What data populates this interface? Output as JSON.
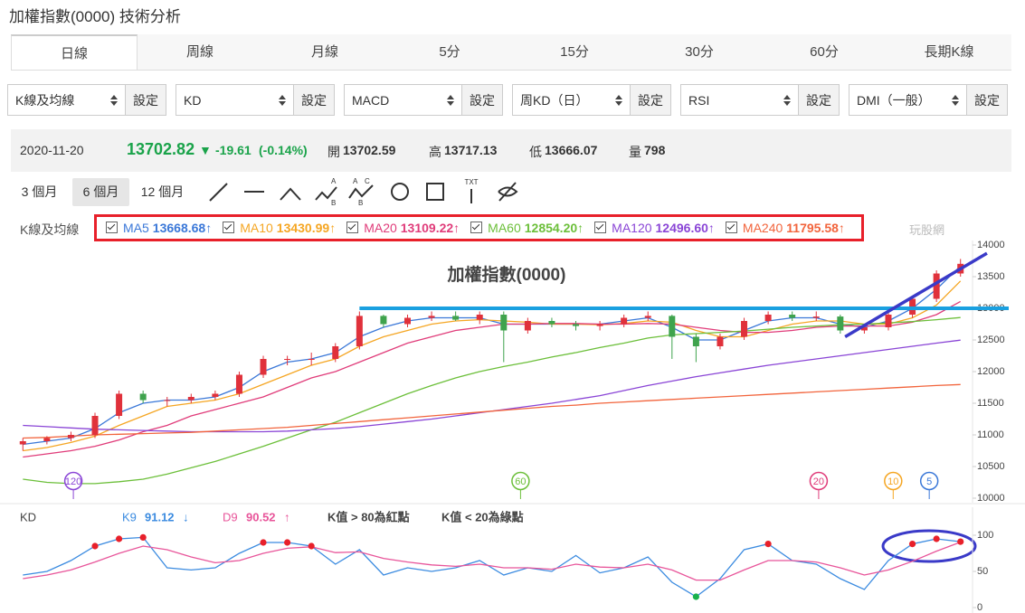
{
  "header": {
    "title": "加權指數(0000) 技術分析"
  },
  "tabs": {
    "items": [
      "日線",
      "周線",
      "月線",
      "5分",
      "15分",
      "30分",
      "60分",
      "長期K線"
    ],
    "active": 0
  },
  "selectors": {
    "items": [
      "K線及均線",
      "KD",
      "MACD",
      "周KD（日）",
      "RSI",
      "DMI（一般）"
    ],
    "button": "設定"
  },
  "quote": {
    "date": "2020-11-20",
    "close": 13702.82,
    "arrow": "▼",
    "change": -19.61,
    "change_pct": "(-0.14%)",
    "color": "#1aa34a",
    "open_label": "開",
    "open": 13702.59,
    "high_label": "高",
    "high": 13717.13,
    "low_label": "低",
    "low": 13666.07,
    "volume_label": "量",
    "volume": 798
  },
  "ranges": {
    "items": [
      "3 個月",
      "6 個月",
      "12 個月"
    ],
    "active": 1
  },
  "toolbar": {
    "icons": [
      {
        "letters": [
          "A",
          "B"
        ]
      },
      {
        "letters": [
          "A",
          "B",
          "C"
        ]
      },
      {
        "letters": [
          "TXT"
        ]
      }
    ]
  },
  "chart_data": {
    "type": "candlestick",
    "title": "加權指數(0000)",
    "panel_label": "K線及均線",
    "watermark": "玩股網",
    "up_color": "#e0313b",
    "down_color": "#3fa34d",
    "open": [
      10850,
      10900,
      10950,
      11000,
      11300,
      11650,
      11550,
      11550,
      11600,
      11650,
      11950,
      12200,
      12200,
      12200,
      12400,
      12880,
      12750,
      12850,
      12880,
      12820,
      12900,
      12650,
      12800,
      12750,
      12720,
      12750,
      12850,
      12880,
      12550,
      12400,
      12550,
      12800,
      12900,
      12850,
      12870,
      12650,
      12700,
      12900,
      13150,
      13550
    ],
    "high": [
      10950,
      10980,
      11050,
      11350,
      11700,
      11700,
      11600,
      11650,
      11700,
      12000,
      12250,
      12250,
      12300,
      12450,
      12950,
      12900,
      12900,
      12950,
      12950,
      12950,
      12950,
      12850,
      12850,
      12800,
      12800,
      12900,
      12950,
      12900,
      12600,
      12600,
      12850,
      12950,
      12950,
      12950,
      12900,
      12750,
      12950,
      13200,
      13600,
      13780
    ],
    "low": [
      10750,
      10850,
      10900,
      10950,
      11250,
      11500,
      11450,
      11500,
      11550,
      11600,
      11900,
      12100,
      12100,
      12150,
      12350,
      12700,
      12700,
      12800,
      12800,
      12750,
      12150,
      12600,
      12700,
      12650,
      12650,
      12700,
      12800,
      12200,
      12150,
      12350,
      12500,
      12750,
      12800,
      12800,
      12600,
      12600,
      12650,
      12850,
      13100,
      13500
    ],
    "close": [
      10900,
      10950,
      11000,
      11300,
      11650,
      11550,
      11550,
      11600,
      11650,
      11950,
      12200,
      12200,
      12200,
      12400,
      12880,
      12750,
      12850,
      12880,
      12820,
      12900,
      12650,
      12800,
      12750,
      12720,
      12750,
      12850,
      12880,
      12550,
      12400,
      12550,
      12800,
      12900,
      12850,
      12870,
      12650,
      12700,
      12900,
      13150,
      13550,
      13702.82
    ],
    "series": [
      {
        "name": "MA5",
        "trend": "↑",
        "color": "#3b78d8",
        "values": [
          10850,
          10900,
          10950,
          11100,
          11350,
          11500,
          11550,
          11550,
          11600,
          11750,
          12000,
          12150,
          12200,
          12300,
          12550,
          12700,
          12800,
          12850,
          12850,
          12850,
          12750,
          12750,
          12750,
          12750,
          12750,
          12800,
          12850,
          12700,
          12500,
          12500,
          12650,
          12800,
          12850,
          12850,
          12750,
          12700,
          12800,
          13000,
          13300,
          13668.68
        ]
      },
      {
        "name": "MA10",
        "trend": "↑",
        "color": "#f5a623",
        "values": [
          10750,
          10800,
          10880,
          10980,
          11150,
          11300,
          11450,
          11500,
          11550,
          11650,
          11800,
          11950,
          12100,
          12200,
          12400,
          12550,
          12650,
          12750,
          12800,
          12820,
          12800,
          12780,
          12750,
          12750,
          12740,
          12760,
          12800,
          12780,
          12650,
          12550,
          12550,
          12650,
          12750,
          12800,
          12800,
          12750,
          12750,
          12850,
          13050,
          13430.99
        ]
      },
      {
        "name": "MA20",
        "trend": "↑",
        "color": "#e03c7a",
        "values": [
          10650,
          10700,
          10750,
          10820,
          10920,
          11050,
          11150,
          11300,
          11400,
          11500,
          11600,
          11750,
          11900,
          12000,
          12150,
          12300,
          12450,
          12550,
          12650,
          12700,
          12750,
          12750,
          12760,
          12760,
          12750,
          12750,
          12760,
          12750,
          12700,
          12650,
          12620,
          12620,
          12650,
          12700,
          12720,
          12720,
          12720,
          12780,
          12900,
          13109.22
        ]
      },
      {
        "name": "MA60",
        "trend": "↑",
        "color": "#6cbf3a",
        "values": [
          10300,
          10250,
          10230,
          10230,
          10260,
          10300,
          10380,
          10480,
          10580,
          10700,
          10820,
          10950,
          11080,
          11200,
          11350,
          11500,
          11650,
          11780,
          11900,
          12000,
          12080,
          12150,
          12230,
          12300,
          12380,
          12450,
          12530,
          12580,
          12600,
          12620,
          12640,
          12670,
          12700,
          12720,
          12740,
          12750,
          12770,
          12790,
          12820,
          12854.2
        ],
        "value_labels": [
          null,
          null,
          null,
          null,
          null,
          null,
          null,
          null,
          null,
          null,
          null,
          null,
          null,
          null,
          null,
          null,
          null,
          null,
          null,
          null,
          null,
          null,
          null,
          null,
          null,
          null,
          null,
          null,
          null,
          null,
          null,
          null,
          null,
          null,
          null,
          null,
          null,
          null,
          null,
          "12854.20"
        ]
      },
      {
        "name": "MA120",
        "trend": "↑",
        "color": "#8a45d6",
        "values": [
          11150,
          11130,
          11110,
          11090,
          11080,
          11070,
          11060,
          11050,
          11050,
          11050,
          11050,
          11060,
          11080,
          11100,
          11130,
          11170,
          11210,
          11250,
          11300,
          11350,
          11400,
          11450,
          11500,
          11560,
          11620,
          11700,
          11780,
          11850,
          11920,
          11980,
          12040,
          12100,
          12150,
          12200,
          12250,
          12300,
          12350,
          12400,
          12450,
          12496.6
        ],
        "value_labels": [
          null,
          null,
          null,
          null,
          null,
          null,
          null,
          null,
          null,
          null,
          null,
          null,
          null,
          null,
          null,
          null,
          null,
          null,
          null,
          null,
          null,
          null,
          null,
          null,
          null,
          null,
          null,
          null,
          null,
          null,
          null,
          null,
          null,
          null,
          null,
          null,
          null,
          null,
          null,
          "12496.60"
        ]
      },
      {
        "name": "MA240",
        "trend": "↑",
        "color": "#f2643c",
        "values": [
          10950,
          10960,
          10980,
          11000,
          11010,
          11020,
          11030,
          11040,
          11060,
          11080,
          11100,
          11120,
          11150,
          11180,
          11210,
          11240,
          11270,
          11300,
          11330,
          11360,
          11390,
          11420,
          11450,
          11470,
          11500,
          11520,
          11540,
          11560,
          11580,
          11600,
          11620,
          11640,
          11660,
          11680,
          11700,
          11720,
          11740,
          11760,
          11780,
          11795.58
        ]
      }
    ],
    "ylim": [
      10000,
      14000
    ],
    "yticks": [
      10000,
      10500,
      11000,
      11500,
      12000,
      12500,
      13000,
      13500,
      14000
    ],
    "ma_markers": [
      {
        "label": "120",
        "index": 2.1,
        "color": "#8a45d6"
      },
      {
        "label": "60",
        "index": 20.7,
        "color": "#6cbf3a"
      },
      {
        "label": "20",
        "index": 33.1,
        "color": "#e03c7a"
      },
      {
        "label": "10",
        "index": 36.2,
        "color": "#f5a623"
      },
      {
        "label": "5",
        "index": 37.7,
        "color": "#3b78d8"
      }
    ],
    "annotations": [
      {
        "kind": "hline",
        "y": 13000,
        "x_from": 14,
        "color": "#1aa0e0"
      },
      {
        "kind": "trend",
        "x": [
          34.2,
          40.1
        ],
        "y": [
          12550,
          13870
        ],
        "color": "#3a3ac8"
      }
    ]
  },
  "kd": {
    "type": "line",
    "label": "KD",
    "series": [
      {
        "name": "K9",
        "trend": "↓",
        "color": "#3b8be0",
        "values": [
          45,
          50,
          65,
          85,
          95,
          97,
          55,
          52,
          55,
          75,
          90,
          90,
          85,
          60,
          80,
          45,
          55,
          50,
          55,
          65,
          45,
          55,
          50,
          72,
          48,
          55,
          70,
          35,
          15,
          40,
          80,
          88,
          65,
          60,
          40,
          25,
          65,
          88,
          95,
          91.12
        ]
      },
      {
        "name": "D9",
        "trend": "↑",
        "color": "#e8559a",
        "values": [
          40,
          45,
          52,
          63,
          75,
          85,
          80,
          70,
          62,
          65,
          75,
          82,
          84,
          76,
          77,
          68,
          63,
          59,
          57,
          60,
          55,
          55,
          53,
          60,
          56,
          55,
          60,
          52,
          38,
          38,
          52,
          65,
          65,
          63,
          55,
          45,
          52,
          64,
          78,
          90.52
        ]
      }
    ],
    "rules": [
      {
        "label": "K值 > 80為紅點",
        "color": "#e8202a"
      },
      {
        "label": "K值 < 20為綠點",
        "color": "#19b14b"
      }
    ],
    "ylim": [
      0,
      100
    ],
    "yticks": [
      0,
      50,
      100
    ]
  }
}
